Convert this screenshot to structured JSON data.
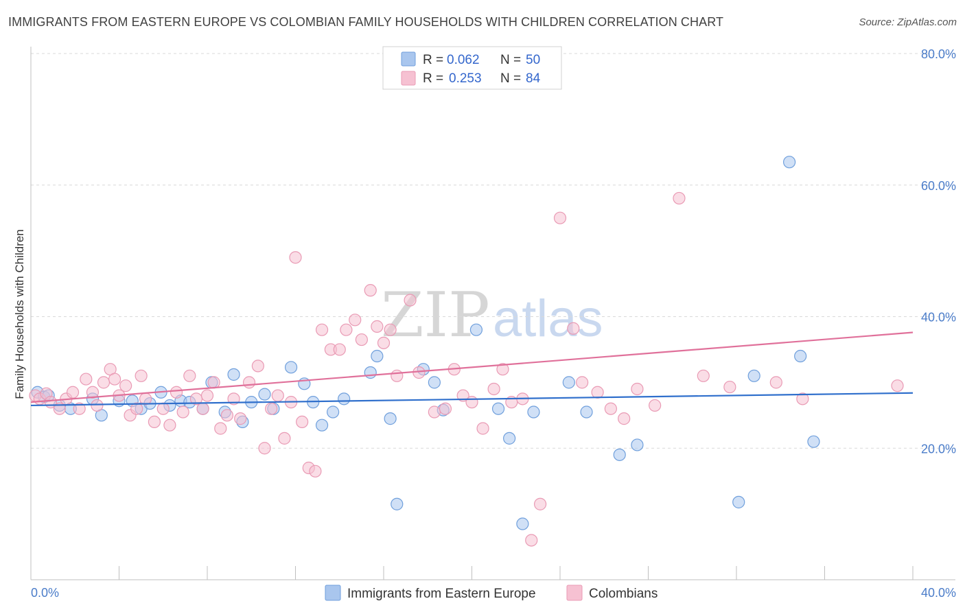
{
  "title": "IMMIGRANTS FROM EASTERN EUROPE VS COLOMBIAN FAMILY HOUSEHOLDS WITH CHILDREN CORRELATION CHART",
  "source": "Source: ZipAtlas.com",
  "watermark": {
    "zip": "ZIP",
    "atlas": "atlas"
  },
  "colors": {
    "blue_fill": "#a9c6ee",
    "blue_stroke": "#6f9fdc",
    "blue_line": "#2f6fcc",
    "pink_fill": "#f6c1d2",
    "pink_stroke": "#e99ab4",
    "pink_line": "#e0709a",
    "grid": "#d9d9d9",
    "tick_label": "#4a7cc9"
  },
  "legend": {
    "rows": [
      {
        "r_label": "R =",
        "r_value": "0.062",
        "n_label": "N =",
        "n_value": "50"
      },
      {
        "r_label": "R =",
        "r_value": "0.253",
        "n_label": "N =",
        "n_value": "84"
      }
    ]
  },
  "chart_data": {
    "type": "scatter",
    "title": "IMMIGRANTS FROM EASTERN EUROPE VS COLOMBIAN FAMILY HOUSEHOLDS WITH CHILDREN CORRELATION CHART",
    "xlabel": "",
    "ylabel": "Family Households with Children",
    "xlim": [
      0,
      40
    ],
    "ylim": [
      0,
      80
    ],
    "x_tick_labels": [
      "0.0%",
      "40.0%"
    ],
    "y_ticks": [
      20,
      40,
      60,
      80
    ],
    "y_tick_labels": [
      "20.0%",
      "40.0%",
      "60.0%",
      "80.0%"
    ],
    "grid": true,
    "legend_position": "top-center",
    "series": [
      {
        "name": "Immigrants from Eastern Europe",
        "r": 0.062,
        "n": 50,
        "trend": [
          [
            0,
            26.5
          ],
          [
            40,
            28.4
          ]
        ],
        "points": [
          [
            0.3,
            28.5
          ],
          [
            0.6,
            27.8
          ],
          [
            0.8,
            28.0
          ],
          [
            1.3,
            26.5
          ],
          [
            1.8,
            26.0
          ],
          [
            2.8,
            27.5
          ],
          [
            3.2,
            25.0
          ],
          [
            4.0,
            27.2
          ],
          [
            4.6,
            27.2
          ],
          [
            5.0,
            26.0
          ],
          [
            5.4,
            26.8
          ],
          [
            5.9,
            28.5
          ],
          [
            6.3,
            26.5
          ],
          [
            6.8,
            27.2
          ],
          [
            7.2,
            27.0
          ],
          [
            7.8,
            26.0
          ],
          [
            8.2,
            30.0
          ],
          [
            8.8,
            25.5
          ],
          [
            9.2,
            31.2
          ],
          [
            9.6,
            24.0
          ],
          [
            10.0,
            27.0
          ],
          [
            10.6,
            28.2
          ],
          [
            11.0,
            26.0
          ],
          [
            11.8,
            32.3
          ],
          [
            12.4,
            29.8
          ],
          [
            12.8,
            27.0
          ],
          [
            13.2,
            23.5
          ],
          [
            13.7,
            25.5
          ],
          [
            14.2,
            27.5
          ],
          [
            15.4,
            31.5
          ],
          [
            15.7,
            34.0
          ],
          [
            16.3,
            24.5
          ],
          [
            16.6,
            11.5
          ],
          [
            17.8,
            32.0
          ],
          [
            18.3,
            30.0
          ],
          [
            18.7,
            25.8
          ],
          [
            20.2,
            38.0
          ],
          [
            21.2,
            26.0
          ],
          [
            21.7,
            21.5
          ],
          [
            22.3,
            8.5
          ],
          [
            22.8,
            25.5
          ],
          [
            24.4,
            30.0
          ],
          [
            25.2,
            25.5
          ],
          [
            26.7,
            19.0
          ],
          [
            27.5,
            20.5
          ],
          [
            32.1,
            11.8
          ],
          [
            32.8,
            31.0
          ],
          [
            34.4,
            63.5
          ],
          [
            34.9,
            34.0
          ],
          [
            35.5,
            21.0
          ]
        ]
      },
      {
        "name": "Colombians",
        "r": 0.253,
        "n": 84,
        "trend": [
          [
            0,
            27.0
          ],
          [
            40,
            37.6
          ]
        ],
        "points": [
          [
            0.2,
            28.0
          ],
          [
            0.4,
            27.5
          ],
          [
            0.7,
            28.3
          ],
          [
            0.9,
            27.0
          ],
          [
            1.3,
            26.0
          ],
          [
            1.6,
            27.5
          ],
          [
            1.9,
            28.5
          ],
          [
            2.2,
            26.0
          ],
          [
            2.5,
            30.5
          ],
          [
            2.8,
            28.5
          ],
          [
            3.0,
            26.5
          ],
          [
            3.3,
            30.0
          ],
          [
            3.6,
            32.0
          ],
          [
            3.8,
            30.5
          ],
          [
            4.0,
            28.0
          ],
          [
            4.3,
            29.5
          ],
          [
            4.5,
            25.0
          ],
          [
            4.8,
            26.0
          ],
          [
            5.0,
            31.0
          ],
          [
            5.2,
            27.5
          ],
          [
            5.6,
            24.0
          ],
          [
            6.0,
            26.0
          ],
          [
            6.3,
            23.5
          ],
          [
            6.6,
            28.5
          ],
          [
            6.9,
            25.5
          ],
          [
            7.2,
            31.0
          ],
          [
            7.5,
            27.5
          ],
          [
            7.8,
            26.0
          ],
          [
            8.0,
            28.0
          ],
          [
            8.3,
            30.0
          ],
          [
            8.6,
            23.0
          ],
          [
            8.9,
            25.0
          ],
          [
            9.2,
            27.5
          ],
          [
            9.5,
            24.5
          ],
          [
            9.9,
            30.0
          ],
          [
            10.3,
            32.5
          ],
          [
            10.6,
            20.0
          ],
          [
            10.9,
            26.0
          ],
          [
            11.2,
            28.0
          ],
          [
            11.5,
            21.5
          ],
          [
            11.8,
            27.0
          ],
          [
            12.0,
            49.0
          ],
          [
            12.3,
            24.0
          ],
          [
            12.6,
            17.0
          ],
          [
            12.9,
            16.5
          ],
          [
            13.2,
            38.0
          ],
          [
            13.6,
            35.0
          ],
          [
            14.0,
            35.0
          ],
          [
            14.3,
            38.0
          ],
          [
            14.7,
            39.5
          ],
          [
            15.0,
            36.5
          ],
          [
            15.4,
            44.0
          ],
          [
            15.7,
            38.5
          ],
          [
            16.0,
            36.0
          ],
          [
            16.3,
            38.0
          ],
          [
            16.6,
            31.0
          ],
          [
            17.2,
            42.5
          ],
          [
            17.6,
            31.5
          ],
          [
            18.3,
            25.5
          ],
          [
            18.8,
            26.0
          ],
          [
            19.2,
            32.0
          ],
          [
            19.6,
            28.0
          ],
          [
            20.0,
            27.0
          ],
          [
            20.5,
            23.0
          ],
          [
            21.0,
            29.0
          ],
          [
            21.4,
            32.0
          ],
          [
            21.8,
            27.0
          ],
          [
            22.3,
            27.5
          ],
          [
            22.7,
            6.0
          ],
          [
            23.1,
            11.5
          ],
          [
            24.0,
            55.0
          ],
          [
            24.6,
            38.2
          ],
          [
            25.0,
            30.0
          ],
          [
            25.7,
            28.5
          ],
          [
            26.3,
            26.0
          ],
          [
            26.9,
            24.5
          ],
          [
            27.5,
            29.0
          ],
          [
            28.3,
            26.5
          ],
          [
            29.4,
            58.0
          ],
          [
            30.5,
            31.0
          ],
          [
            31.7,
            29.3
          ],
          [
            33.8,
            30.0
          ],
          [
            35.0,
            27.5
          ],
          [
            39.3,
            29.5
          ]
        ]
      }
    ]
  }
}
